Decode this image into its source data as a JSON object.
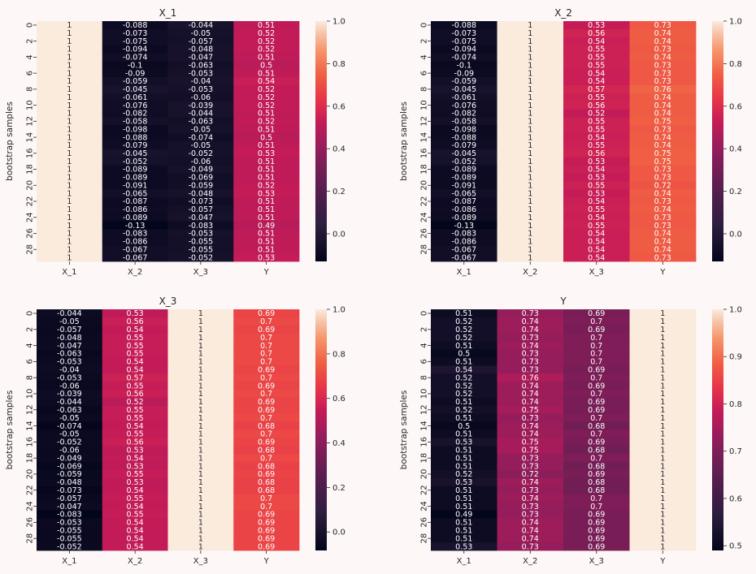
{
  "chart_data": [
    {
      "type": "heatmap",
      "title": "X_1",
      "ylabel": "bootstrap samples",
      "columns": [
        "X_1",
        "X_2",
        "X_3",
        "Y"
      ],
      "row_ticks": [
        "0",
        "2",
        "4",
        "6",
        "8",
        "10",
        "12",
        "14",
        "16",
        "18",
        "20",
        "22",
        "24",
        "26",
        "28"
      ],
      "colorbar_ticks": [
        "1.0",
        "0.8",
        "0.6",
        "0.4",
        "0.2",
        "0.0"
      ],
      "vmin": -0.13,
      "vmax": 1.0,
      "cells": [
        [
          "1",
          "-0.088",
          "-0.044",
          "0.51"
        ],
        [
          "1",
          "-0.073",
          "-0.05",
          "0.52"
        ],
        [
          "1",
          "-0.075",
          "-0.057",
          "0.52"
        ],
        [
          "1",
          "-0.094",
          "-0.048",
          "0.52"
        ],
        [
          "1",
          "-0.074",
          "-0.047",
          "0.51"
        ],
        [
          "1",
          "-0.1",
          "-0.063",
          "0.5"
        ],
        [
          "1",
          "-0.09",
          "-0.053",
          "0.51"
        ],
        [
          "1",
          "-0.059",
          "-0.04",
          "0.54"
        ],
        [
          "1",
          "-0.045",
          "-0.053",
          "0.52"
        ],
        [
          "1",
          "-0.061",
          "-0.06",
          "0.52"
        ],
        [
          "1",
          "-0.076",
          "-0.039",
          "0.52"
        ],
        [
          "1",
          "-0.082",
          "-0.044",
          "0.51"
        ],
        [
          "1",
          "-0.058",
          "-0.063",
          "0.52"
        ],
        [
          "1",
          "-0.098",
          "-0.05",
          "0.51"
        ],
        [
          "1",
          "-0.088",
          "-0.074",
          "0.5"
        ],
        [
          "1",
          "-0.079",
          "-0.05",
          "0.51"
        ],
        [
          "1",
          "-0.045",
          "-0.052",
          "0.53"
        ],
        [
          "1",
          "-0.052",
          "-0.06",
          "0.51"
        ],
        [
          "1",
          "-0.089",
          "-0.049",
          "0.51"
        ],
        [
          "1",
          "-0.089",
          "-0.069",
          "0.51"
        ],
        [
          "1",
          "-0.091",
          "-0.059",
          "0.52"
        ],
        [
          "1",
          "-0.065",
          "-0.048",
          "0.53"
        ],
        [
          "1",
          "-0.087",
          "-0.073",
          "0.51"
        ],
        [
          "1",
          "-0.086",
          "-0.057",
          "0.51"
        ],
        [
          "1",
          "-0.089",
          "-0.047",
          "0.51"
        ],
        [
          "1",
          "-0.13",
          "-0.083",
          "0.49"
        ],
        [
          "1",
          "-0.083",
          "-0.053",
          "0.51"
        ],
        [
          "1",
          "-0.086",
          "-0.055",
          "0.51"
        ],
        [
          "1",
          "-0.067",
          "-0.055",
          "0.51"
        ],
        [
          "1",
          "-0.067",
          "-0.052",
          "0.53"
        ]
      ]
    },
    {
      "type": "heatmap",
      "title": "X_2",
      "ylabel": "bootstrap samples",
      "columns": [
        "X_1",
        "X_2",
        "X_3",
        "Y"
      ],
      "row_ticks": [
        "0",
        "2",
        "4",
        "6",
        "8",
        "10",
        "12",
        "14",
        "16",
        "18",
        "20",
        "22",
        "24",
        "26",
        "28"
      ],
      "colorbar_ticks": [
        "1.0",
        "0.8",
        "0.6",
        "0.4",
        "0.2",
        "0.0"
      ],
      "vmin": -0.13,
      "vmax": 1.0,
      "cells": [
        [
          "-0.088",
          "1",
          "0.53",
          "0.73"
        ],
        [
          "-0.073",
          "1",
          "0.56",
          "0.74"
        ],
        [
          "-0.075",
          "1",
          "0.54",
          "0.74"
        ],
        [
          "-0.094",
          "1",
          "0.55",
          "0.73"
        ],
        [
          "-0.074",
          "1",
          "0.55",
          "0.74"
        ],
        [
          "-0.1",
          "1",
          "0.55",
          "0.73"
        ],
        [
          "-0.09",
          "1",
          "0.54",
          "0.73"
        ],
        [
          "-0.059",
          "1",
          "0.54",
          "0.73"
        ],
        [
          "-0.045",
          "1",
          "0.57",
          "0.76"
        ],
        [
          "-0.061",
          "1",
          "0.55",
          "0.74"
        ],
        [
          "-0.076",
          "1",
          "0.56",
          "0.74"
        ],
        [
          "-0.082",
          "1",
          "0.52",
          "0.74"
        ],
        [
          "-0.058",
          "1",
          "0.55",
          "0.75"
        ],
        [
          "-0.098",
          "1",
          "0.55",
          "0.73"
        ],
        [
          "-0.088",
          "1",
          "0.54",
          "0.74"
        ],
        [
          "-0.079",
          "1",
          "0.55",
          "0.74"
        ],
        [
          "-0.045",
          "1",
          "0.56",
          "0.75"
        ],
        [
          "-0.052",
          "1",
          "0.53",
          "0.75"
        ],
        [
          "-0.089",
          "1",
          "0.54",
          "0.73"
        ],
        [
          "-0.089",
          "1",
          "0.53",
          "0.73"
        ],
        [
          "-0.091",
          "1",
          "0.55",
          "0.72"
        ],
        [
          "-0.065",
          "1",
          "0.53",
          "0.74"
        ],
        [
          "-0.087",
          "1",
          "0.54",
          "0.73"
        ],
        [
          "-0.086",
          "1",
          "0.55",
          "0.74"
        ],
        [
          "-0.089",
          "1",
          "0.54",
          "0.73"
        ],
        [
          "-0.13",
          "1",
          "0.55",
          "0.73"
        ],
        [
          "-0.083",
          "1",
          "0.54",
          "0.74"
        ],
        [
          "-0.086",
          "1",
          "0.54",
          "0.74"
        ],
        [
          "-0.067",
          "1",
          "0.54",
          "0.74"
        ],
        [
          "-0.067",
          "1",
          "0.54",
          "0.73"
        ]
      ]
    },
    {
      "type": "heatmap",
      "title": "X_3",
      "ylabel": "bootstrap samples",
      "columns": [
        "X_1",
        "X_2",
        "X_3",
        "Y"
      ],
      "row_ticks": [
        "0",
        "2",
        "4",
        "6",
        "8",
        "10",
        "12",
        "14",
        "16",
        "18",
        "20",
        "22",
        "24",
        "26",
        "28"
      ],
      "colorbar_ticks": [
        "1.0",
        "0.8",
        "0.6",
        "0.4",
        "0.2",
        "0.0"
      ],
      "vmin": -0.083,
      "vmax": 1.0,
      "cells": [
        [
          "-0.044",
          "0.53",
          "1",
          "0.69"
        ],
        [
          "-0.05",
          "0.56",
          "1",
          "0.7"
        ],
        [
          "-0.057",
          "0.54",
          "1",
          "0.69"
        ],
        [
          "-0.048",
          "0.55",
          "1",
          "0.7"
        ],
        [
          "-0.047",
          "0.55",
          "1",
          "0.7"
        ],
        [
          "-0.063",
          "0.55",
          "1",
          "0.7"
        ],
        [
          "-0.053",
          "0.54",
          "1",
          "0.7"
        ],
        [
          "-0.04",
          "0.54",
          "1",
          "0.69"
        ],
        [
          "-0.053",
          "0.57",
          "1",
          "0.7"
        ],
        [
          "-0.06",
          "0.55",
          "1",
          "0.69"
        ],
        [
          "-0.039",
          "0.56",
          "1",
          "0.7"
        ],
        [
          "-0.044",
          "0.52",
          "1",
          "0.69"
        ],
        [
          "-0.063",
          "0.55",
          "1",
          "0.69"
        ],
        [
          "-0.05",
          "0.55",
          "1",
          "0.7"
        ],
        [
          "-0.074",
          "0.54",
          "1",
          "0.68"
        ],
        [
          "-0.05",
          "0.55",
          "1",
          "0.7"
        ],
        [
          "-0.052",
          "0.56",
          "1",
          "0.69"
        ],
        [
          "-0.06",
          "0.53",
          "1",
          "0.68"
        ],
        [
          "-0.049",
          "0.54",
          "1",
          "0.7"
        ],
        [
          "-0.069",
          "0.53",
          "1",
          "0.68"
        ],
        [
          "-0.059",
          "0.55",
          "1",
          "0.69"
        ],
        [
          "-0.048",
          "0.53",
          "1",
          "0.68"
        ],
        [
          "-0.073",
          "0.54",
          "1",
          "0.68"
        ],
        [
          "-0.057",
          "0.55",
          "1",
          "0.7"
        ],
        [
          "-0.047",
          "0.54",
          "1",
          "0.7"
        ],
        [
          "-0.083",
          "0.55",
          "1",
          "0.69"
        ],
        [
          "-0.053",
          "0.54",
          "1",
          "0.69"
        ],
        [
          "-0.055",
          "0.54",
          "1",
          "0.69"
        ],
        [
          "-0.055",
          "0.54",
          "1",
          "0.69"
        ],
        [
          "-0.052",
          "0.54",
          "1",
          "0.69"
        ]
      ]
    },
    {
      "type": "heatmap",
      "title": "Y",
      "ylabel": "bootstrap samples",
      "columns": [
        "X_1",
        "X_2",
        "X_3",
        "Y"
      ],
      "row_ticks": [
        "0",
        "2",
        "4",
        "6",
        "8",
        "10",
        "12",
        "14",
        "16",
        "18",
        "20",
        "22",
        "24",
        "26",
        "28"
      ],
      "colorbar_ticks": [
        "1.0",
        "0.9",
        "0.8",
        "0.7",
        "0.6",
        "0.5"
      ],
      "vmin": 0.49,
      "vmax": 1.0,
      "cells": [
        [
          "0.51",
          "0.73",
          "0.69",
          "1"
        ],
        [
          "0.52",
          "0.74",
          "0.7",
          "1"
        ],
        [
          "0.52",
          "0.74",
          "0.69",
          "1"
        ],
        [
          "0.52",
          "0.73",
          "0.7",
          "1"
        ],
        [
          "0.51",
          "0.74",
          "0.7",
          "1"
        ],
        [
          "0.5",
          "0.73",
          "0.7",
          "1"
        ],
        [
          "0.51",
          "0.73",
          "0.7",
          "1"
        ],
        [
          "0.54",
          "0.73",
          "0.69",
          "1"
        ],
        [
          "0.52",
          "0.76",
          "0.7",
          "1"
        ],
        [
          "0.52",
          "0.74",
          "0.69",
          "1"
        ],
        [
          "0.52",
          "0.74",
          "0.7",
          "1"
        ],
        [
          "0.51",
          "0.74",
          "0.69",
          "1"
        ],
        [
          "0.52",
          "0.75",
          "0.69",
          "1"
        ],
        [
          "0.51",
          "0.73",
          "0.7",
          "1"
        ],
        [
          "0.5",
          "0.74",
          "0.68",
          "1"
        ],
        [
          "0.51",
          "0.74",
          "0.7",
          "1"
        ],
        [
          "0.53",
          "0.75",
          "0.69",
          "1"
        ],
        [
          "0.51",
          "0.75",
          "0.68",
          "1"
        ],
        [
          "0.51",
          "0.73",
          "0.7",
          "1"
        ],
        [
          "0.51",
          "0.73",
          "0.68",
          "1"
        ],
        [
          "0.52",
          "0.72",
          "0.69",
          "1"
        ],
        [
          "0.53",
          "0.74",
          "0.68",
          "1"
        ],
        [
          "0.51",
          "0.73",
          "0.68",
          "1"
        ],
        [
          "0.51",
          "0.74",
          "0.7",
          "1"
        ],
        [
          "0.51",
          "0.73",
          "0.7",
          "1"
        ],
        [
          "0.49",
          "0.73",
          "0.69",
          "1"
        ],
        [
          "0.51",
          "0.74",
          "0.69",
          "1"
        ],
        [
          "0.51",
          "0.74",
          "0.69",
          "1"
        ],
        [
          "0.51",
          "0.74",
          "0.69",
          "1"
        ],
        [
          "0.53",
          "0.73",
          "0.69",
          "1"
        ]
      ]
    }
  ]
}
